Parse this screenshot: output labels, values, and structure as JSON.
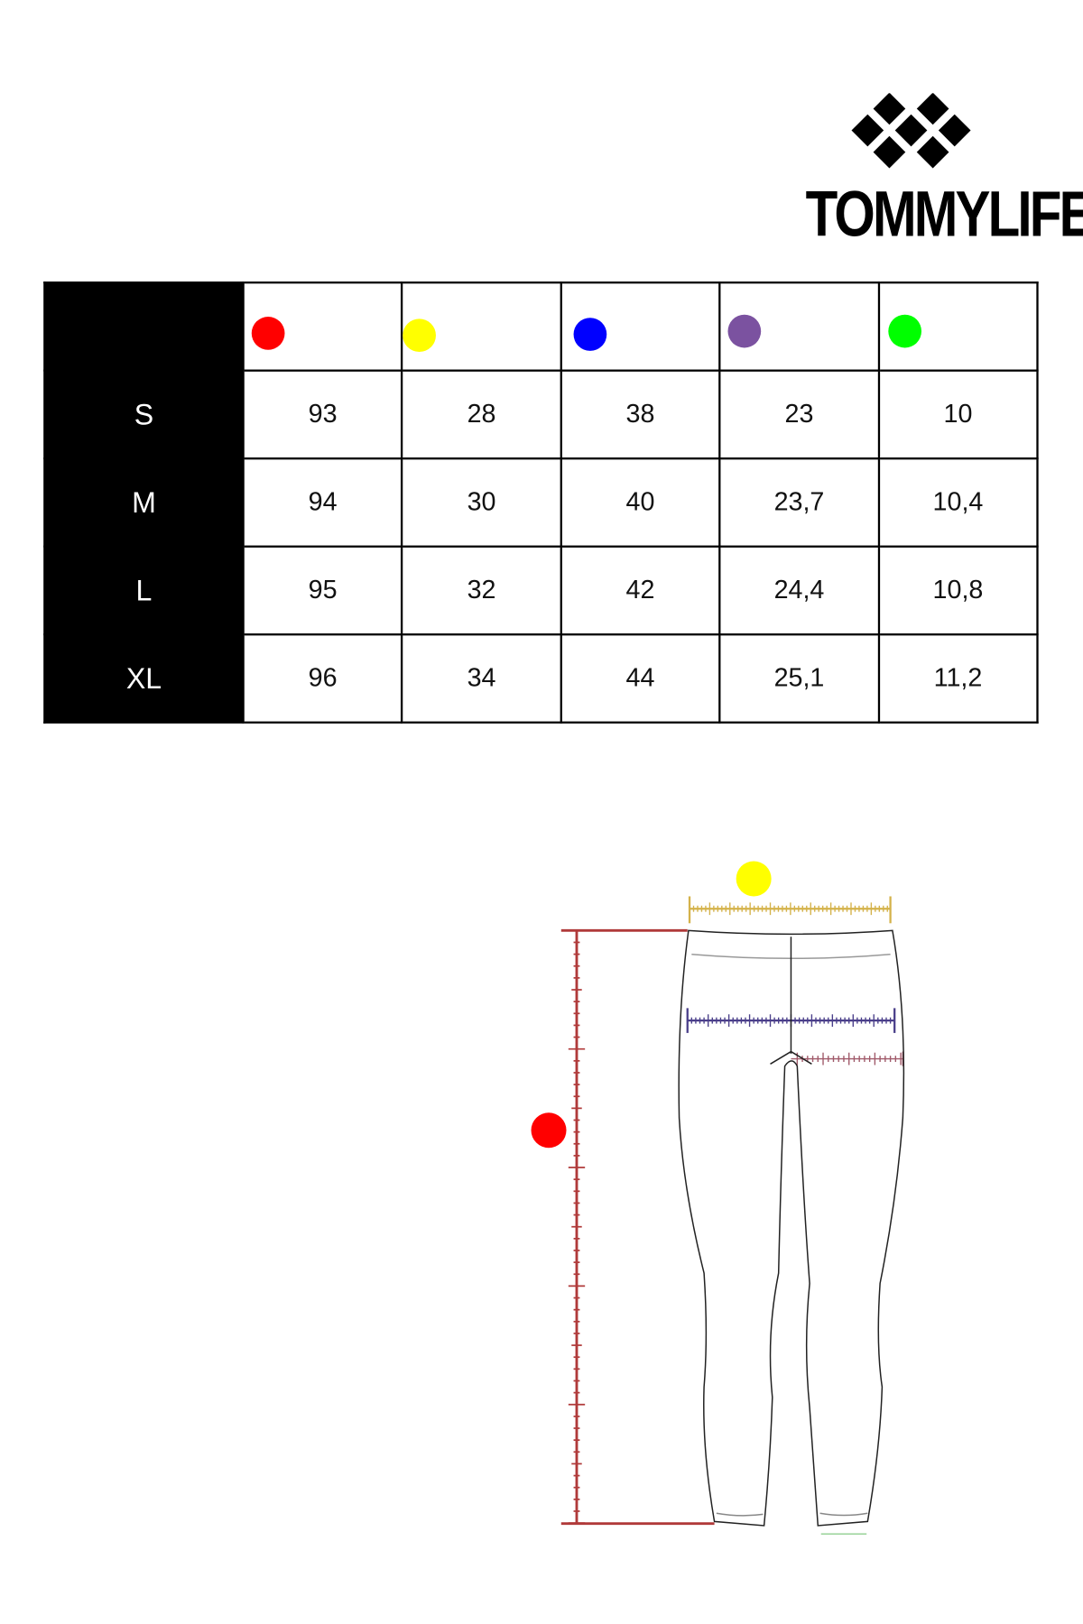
{
  "brand": {
    "name": "TOMMYLIFE"
  },
  "legend_colors": [
    "#ff0000",
    "#ffff00",
    "#0000ff",
    "#7b52a0",
    "#00ff00"
  ],
  "table": {
    "rows": [
      {
        "size": "S",
        "values": [
          "93",
          "28",
          "38",
          "23",
          "10"
        ]
      },
      {
        "size": "M",
        "values": [
          "94",
          "30",
          "40",
          "23,7",
          "10,4"
        ]
      },
      {
        "size": "L",
        "values": [
          "95",
          "32",
          "42",
          "24,4",
          "10,8"
        ]
      },
      {
        "size": "XL",
        "values": [
          "96",
          "34",
          "44",
          "25,1",
          "11,2"
        ]
      }
    ]
  },
  "diagram": {
    "item": "leggings",
    "markers": {
      "length": "#ff0000",
      "waist": "#ffff00"
    }
  }
}
